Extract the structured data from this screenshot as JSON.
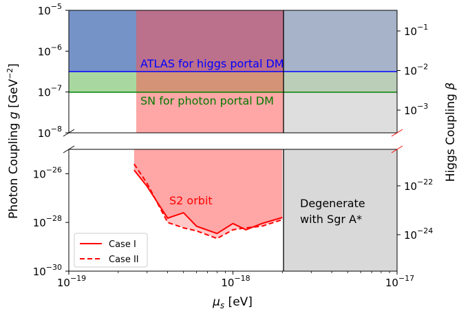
{
  "chart_data": {
    "type": "area",
    "xlabel": "μs [eV]",
    "ylabel_left": "Photon Coupling g [GeV⁻²]",
    "ylabel_right": "Higgs Coupling β",
    "xscale": "log",
    "yscale": "log (broken axis)",
    "xlim": [
      1e-19,
      1e-17
    ],
    "ylim_upper": [
      1e-08,
      1e-05
    ],
    "ylim_lower": [
      1e-30,
      1e-25
    ],
    "x_ticks": [
      {
        "base": "10",
        "exp": "−19",
        "value": 1e-19
      },
      {
        "base": "10",
        "exp": "−18",
        "value": 1e-18
      },
      {
        "base": "10",
        "exp": "−17",
        "value": 1e-17
      }
    ],
    "y_ticks_upper": [
      {
        "base": "10",
        "exp": "−5",
        "value": 1e-05
      },
      {
        "base": "10",
        "exp": "−6",
        "value": 1e-06
      },
      {
        "base": "10",
        "exp": "−7",
        "value": 1e-07
      },
      {
        "base": "10",
        "exp": "−8",
        "value": 1e-08
      }
    ],
    "y_ticks_lower": [
      {
        "base": "10",
        "exp": "−26",
        "value": 1e-26
      },
      {
        "base": "10",
        "exp": "−28",
        "value": 1e-28
      },
      {
        "base": "10",
        "exp": "−30",
        "value": 1e-30
      }
    ],
    "right_ticks_upper": [
      {
        "base": "10",
        "exp": "−1",
        "value": 0.1
      },
      {
        "base": "10",
        "exp": "−2",
        "value": 0.01
      },
      {
        "base": "10",
        "exp": "−3",
        "value": 0.001
      }
    ],
    "right_ticks_lower": [
      {
        "base": "10",
        "exp": "−22",
        "value": 1e-22
      },
      {
        "base": "10",
        "exp": "−24",
        "value": 1e-24
      }
    ],
    "regions": [
      {
        "name": "ATLAS for higgs portal DM",
        "color": "#1f4fa8",
        "g_lower": 3.2e-07
      },
      {
        "name": "SN for photon portal DM",
        "color": "#2ca02c",
        "g_lower": 1e-07
      },
      {
        "name": "S2 orbit",
        "color": "#ff6666",
        "x_from": 2.5e-19,
        "x_to": 2e-18
      },
      {
        "name": "Degenerate with Sgr A*",
        "color": "#c8c8c8",
        "x_from": 2e-18,
        "x_to": 1e-17
      }
    ],
    "series": [
      {
        "name": "Case I",
        "style": "solid",
        "color": "#ff0000",
        "x": [
          2.5e-19,
          3e-19,
          4e-19,
          5e-19,
          6e-19,
          8e-19,
          1e-18,
          1.2e-18,
          1.5e-18,
          2e-18
        ],
        "y": [
          1.4e-26,
          3e-27,
          1.5e-28,
          2.5e-28,
          7e-29,
          3.5e-29,
          9e-29,
          5e-29,
          9e-29,
          1.6e-28
        ]
      },
      {
        "name": "Case II",
        "style": "dashed",
        "color": "#ff0000",
        "x": [
          2.5e-19,
          3e-19,
          4e-19,
          5e-19,
          6e-19,
          8e-19,
          1e-18,
          1.2e-18,
          1.5e-18,
          2e-18
        ],
        "y": [
          2.5e-26,
          4e-27,
          1e-28,
          6e-29,
          4.5e-29,
          2.2e-29,
          5e-29,
          6e-29,
          7e-29,
          1.3e-28
        ]
      }
    ],
    "annotations": {
      "atlas": "ATLAS for higgs portal DM",
      "sn": "SN for photon portal DM",
      "s2": "S2 orbit",
      "degenerate_line1": "Degenerate",
      "degenerate_line2": "with Sgr A*"
    },
    "legend": {
      "placement": "lower-left",
      "entries": [
        "Case I",
        "Case II"
      ]
    },
    "grid": false
  }
}
